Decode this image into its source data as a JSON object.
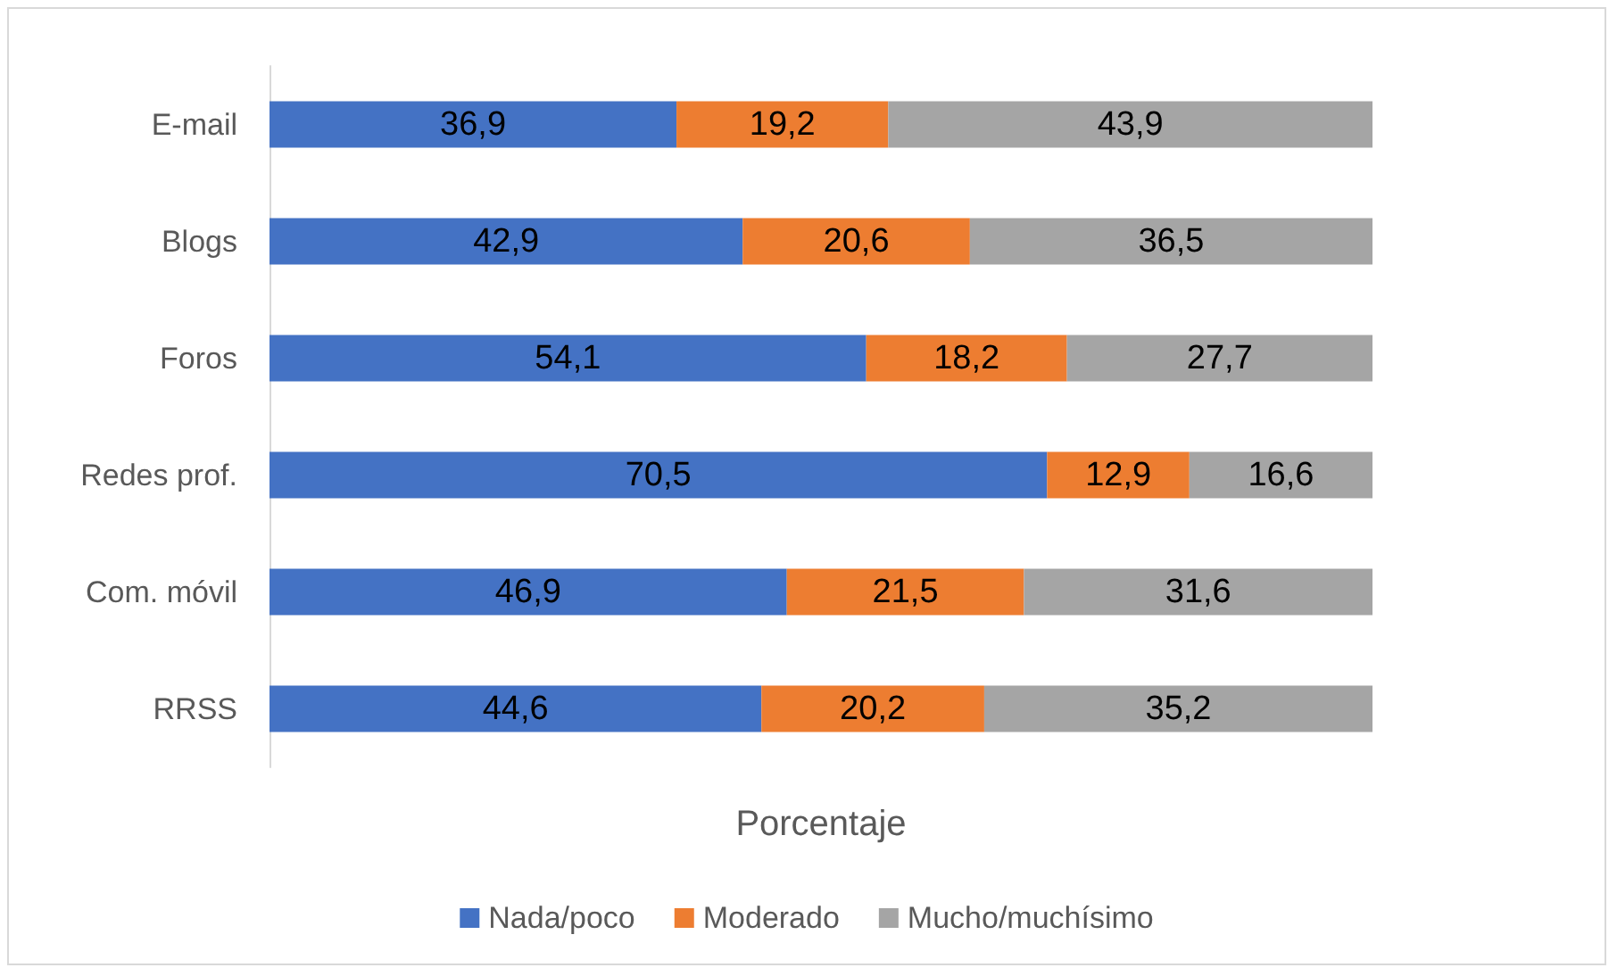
{
  "chart_data": {
    "type": "bar",
    "orientation": "horizontal",
    "stacked": true,
    "xlabel": "Porcentaje",
    "categories": [
      "E-mail",
      "Blogs",
      "Foros",
      "Redes prof.",
      "Com. móvil",
      "RRSS"
    ],
    "xlim": [
      0,
      100
    ],
    "tick_labels": "y",
    "grid": false,
    "legend": "bottom",
    "series": [
      {
        "name": "Nada/poco",
        "color": "#4472c4",
        "values": [
          36.9,
          42.9,
          54.1,
          70.5,
          46.9,
          44.6
        ],
        "value_labels": [
          "36,9",
          "42,9",
          "54,1",
          "70,5",
          "46,9",
          "44,6"
        ]
      },
      {
        "name": "Moderado",
        "color": "#ed7d31",
        "values": [
          19.2,
          20.6,
          18.2,
          12.9,
          21.5,
          20.2
        ],
        "value_labels": [
          "19,2",
          "20,6",
          "18,2",
          "12,9",
          "21,5",
          "20,2"
        ]
      },
      {
        "name": "Mucho/muchísimo",
        "color": "#a5a5a5",
        "values": [
          43.9,
          36.5,
          27.7,
          16.6,
          31.6,
          35.2
        ],
        "value_labels": [
          "43,9",
          "36,5",
          "27,7",
          "16,6",
          "31,6",
          "35,2"
        ]
      }
    ]
  }
}
